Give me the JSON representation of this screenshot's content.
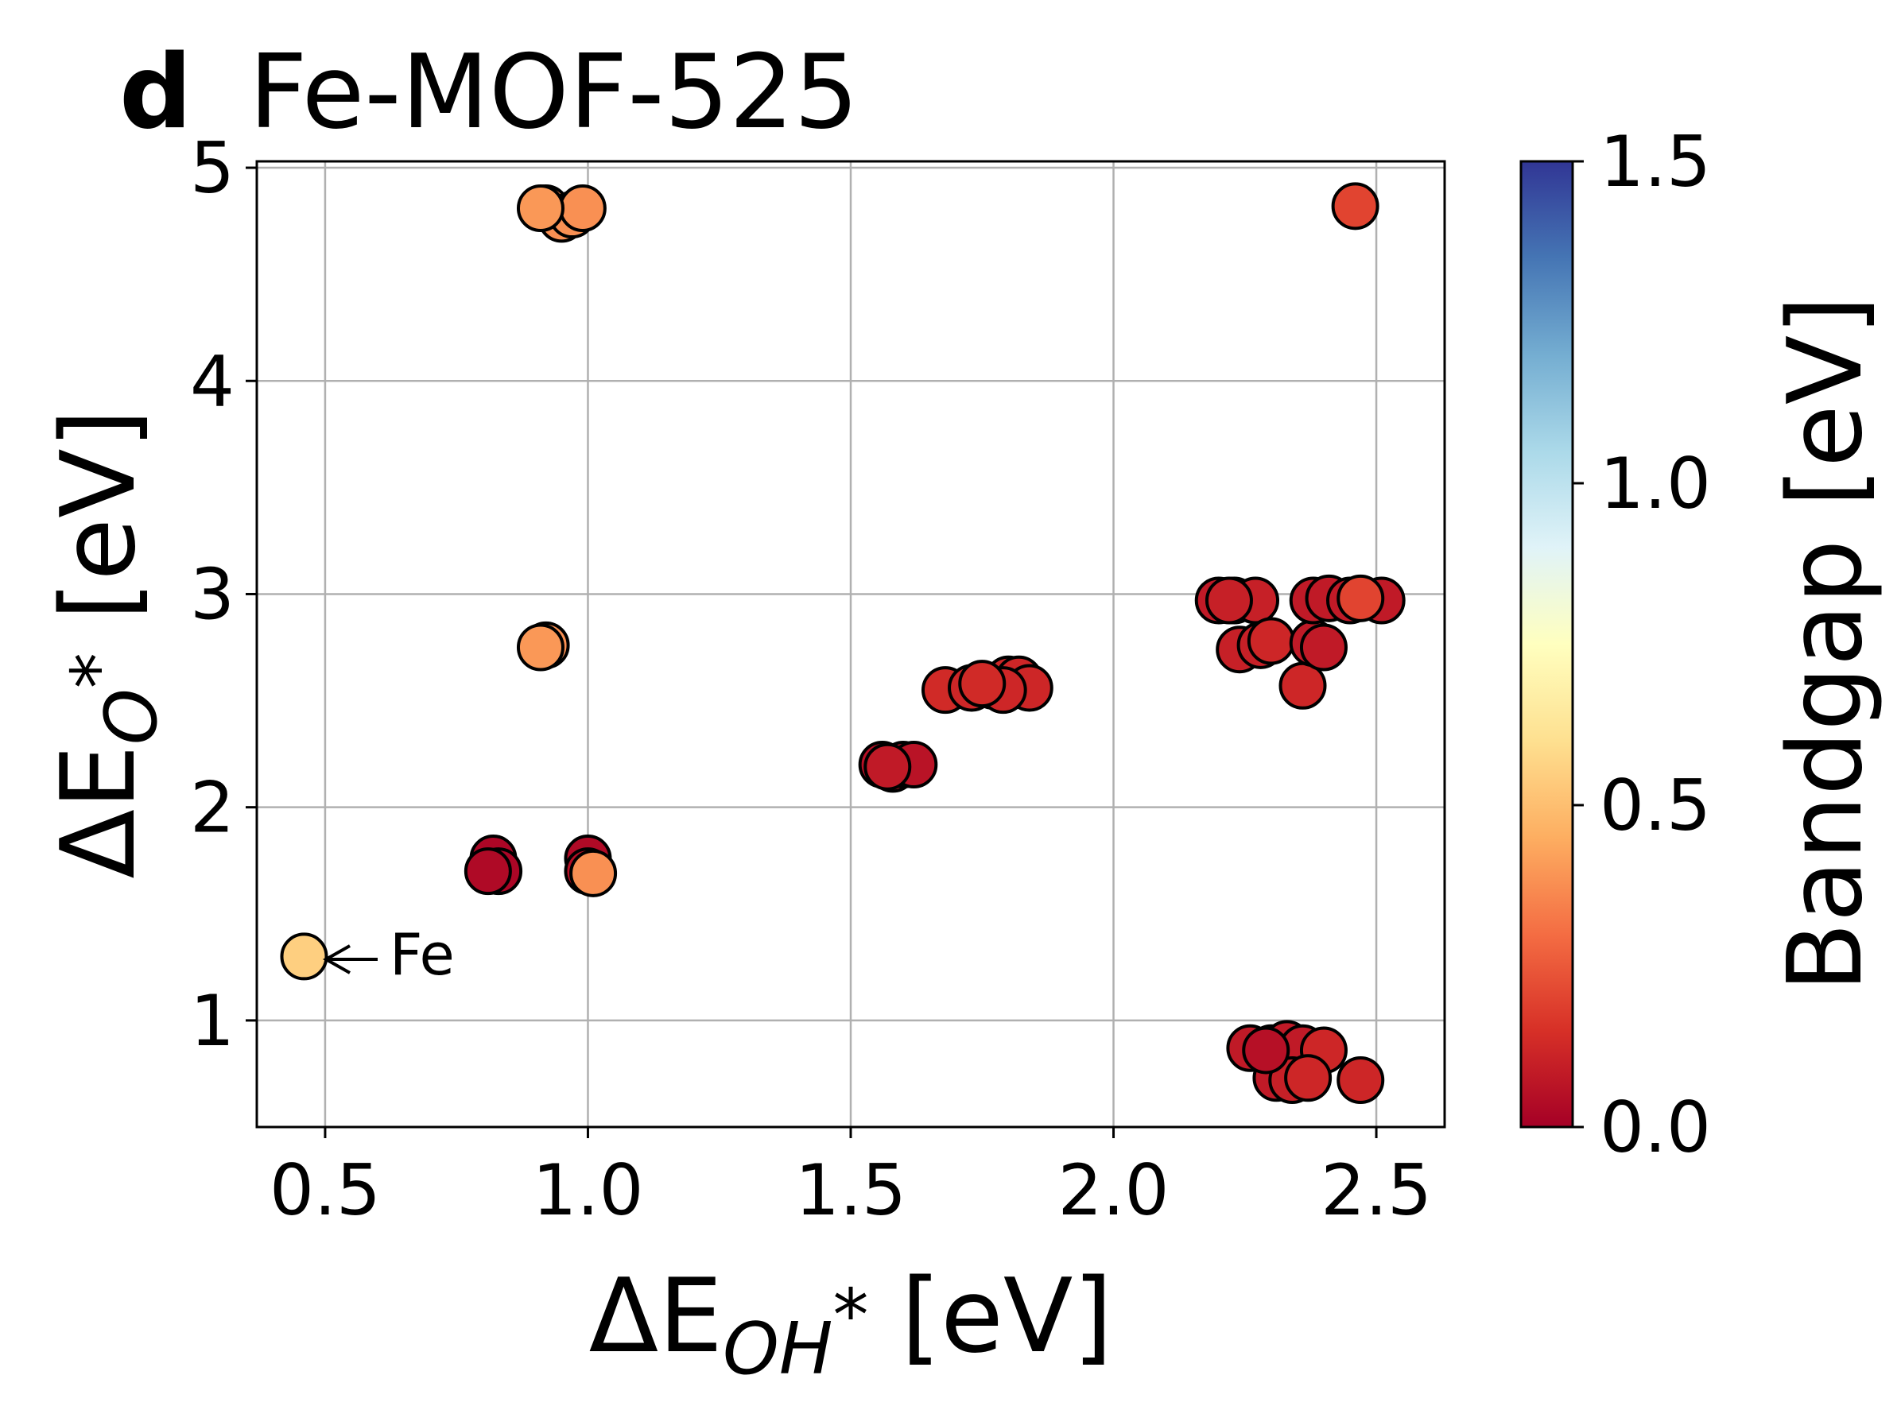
{
  "panel": {
    "letter": "d",
    "title": "Fe-MOF-525"
  },
  "chart_data": {
    "type": "scatter",
    "title": "Fe-MOF-525",
    "xlabel": "ΔE_OH* [eV]",
    "ylabel": "ΔE_O* [eV]",
    "xlim": [
      0.37,
      2.63
    ],
    "ylim": [
      0.5,
      5.03
    ],
    "xticks": [
      "0.5",
      "1.0",
      "1.5",
      "2.0",
      "2.5"
    ],
    "yticks": [
      "1",
      "2",
      "3",
      "4",
      "5"
    ],
    "grid": true,
    "colorbar": {
      "label": "Bandgap [eV]",
      "colormap": "RdYlBu",
      "range": [
        0.0,
        1.5
      ],
      "ticks": [
        "0.0",
        "0.5",
        "1.0",
        "1.5"
      ]
    },
    "annotation": {
      "text": "Fe",
      "x": 0.47,
      "y": 1.3
    },
    "points": [
      {
        "x": 0.92,
        "y": 4.81,
        "c": 0.38
      },
      {
        "x": 0.95,
        "y": 4.76,
        "c": 0.38
      },
      {
        "x": 0.97,
        "y": 4.78,
        "c": 0.38
      },
      {
        "x": 0.99,
        "y": 4.81,
        "c": 0.38
      },
      {
        "x": 0.91,
        "y": 4.81,
        "c": 0.4
      },
      {
        "x": 2.46,
        "y": 4.82,
        "c": 0.2
      },
      {
        "x": 0.92,
        "y": 2.76,
        "c": 0.38
      },
      {
        "x": 0.91,
        "y": 2.75,
        "c": 0.4
      },
      {
        "x": 0.82,
        "y": 1.76,
        "c": 0.02
      },
      {
        "x": 0.83,
        "y": 1.7,
        "c": 0.02
      },
      {
        "x": 0.81,
        "y": 1.7,
        "c": 0.03
      },
      {
        "x": 1.0,
        "y": 1.76,
        "c": 0.03
      },
      {
        "x": 1.0,
        "y": 1.7,
        "c": 0.05
      },
      {
        "x": 1.01,
        "y": 1.69,
        "c": 0.38
      },
      {
        "x": 0.46,
        "y": 1.3,
        "c": 0.55
      },
      {
        "x": 1.56,
        "y": 2.2,
        "c": 0.05
      },
      {
        "x": 1.58,
        "y": 2.18,
        "c": 0.07
      },
      {
        "x": 1.6,
        "y": 2.2,
        "c": 0.05
      },
      {
        "x": 1.62,
        "y": 2.2,
        "c": 0.06
      },
      {
        "x": 1.57,
        "y": 2.19,
        "c": 0.08
      },
      {
        "x": 1.68,
        "y": 2.55,
        "c": 0.13
      },
      {
        "x": 1.73,
        "y": 2.56,
        "c": 0.12
      },
      {
        "x": 1.77,
        "y": 2.57,
        "c": 0.12
      },
      {
        "x": 1.8,
        "y": 2.6,
        "c": 0.12
      },
      {
        "x": 1.82,
        "y": 2.6,
        "c": 0.12
      },
      {
        "x": 1.84,
        "y": 2.56,
        "c": 0.12
      },
      {
        "x": 1.79,
        "y": 2.55,
        "c": 0.12
      },
      {
        "x": 1.75,
        "y": 2.58,
        "c": 0.13
      },
      {
        "x": 2.2,
        "y": 2.97,
        "c": 0.08
      },
      {
        "x": 2.23,
        "y": 2.97,
        "c": 0.08
      },
      {
        "x": 2.27,
        "y": 2.97,
        "c": 0.1
      },
      {
        "x": 2.24,
        "y": 2.74,
        "c": 0.1
      },
      {
        "x": 2.28,
        "y": 2.76,
        "c": 0.1
      },
      {
        "x": 2.3,
        "y": 2.78,
        "c": 0.12
      },
      {
        "x": 2.36,
        "y": 2.57,
        "c": 0.12
      },
      {
        "x": 2.38,
        "y": 2.77,
        "c": 0.08
      },
      {
        "x": 2.4,
        "y": 2.75,
        "c": 0.08
      },
      {
        "x": 2.38,
        "y": 2.97,
        "c": 0.08
      },
      {
        "x": 2.41,
        "y": 2.98,
        "c": 0.08
      },
      {
        "x": 2.45,
        "y": 2.97,
        "c": 0.08
      },
      {
        "x": 2.51,
        "y": 2.97,
        "c": 0.08
      },
      {
        "x": 2.47,
        "y": 2.98,
        "c": 0.2
      },
      {
        "x": 2.22,
        "y": 2.97,
        "c": 0.1
      },
      {
        "x": 2.26,
        "y": 0.87,
        "c": 0.08
      },
      {
        "x": 2.3,
        "y": 0.87,
        "c": 0.06
      },
      {
        "x": 2.33,
        "y": 0.89,
        "c": 0.08
      },
      {
        "x": 2.36,
        "y": 0.87,
        "c": 0.08
      },
      {
        "x": 2.4,
        "y": 0.86,
        "c": 0.12
      },
      {
        "x": 2.31,
        "y": 0.73,
        "c": 0.08
      },
      {
        "x": 2.34,
        "y": 0.72,
        "c": 0.1
      },
      {
        "x": 2.37,
        "y": 0.73,
        "c": 0.12
      },
      {
        "x": 2.47,
        "y": 0.72,
        "c": 0.12
      },
      {
        "x": 2.29,
        "y": 0.86,
        "c": 0.05
      }
    ]
  }
}
